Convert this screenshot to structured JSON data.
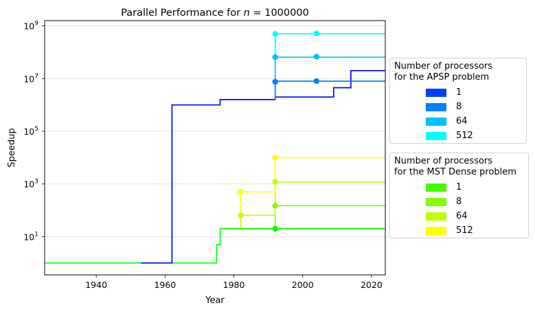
{
  "chart_data": {
    "type": "line",
    "title_prefix": "Parallel Performance for ",
    "title_var": "n",
    "title_suffix": " = 1000000",
    "xlabel": "Year",
    "ylabel": "Speedup",
    "xlim": [
      1925,
      2024
    ],
    "ylim_log10": [
      -0.45,
      9.2
    ],
    "y_scale": "log",
    "x_ticks": [
      1940,
      1960,
      1980,
      2000,
      2020
    ],
    "y_ticks_exp": [
      1,
      3,
      5,
      7,
      9
    ],
    "y_tick_base": "10",
    "grid": "horizontal",
    "legends": [
      {
        "title_lines": [
          "Number of processors",
          "for the APSP problem"
        ],
        "entries": [
          {
            "label": "1",
            "color": "#0040ff"
          },
          {
            "label": "8",
            "color": "#0080ff"
          },
          {
            "label": "64",
            "color": "#00bfff"
          },
          {
            "label": "512",
            "color": "#00ffff"
          }
        ]
      },
      {
        "title_lines": [
          "Number of processors",
          "for the MST Dense problem"
        ],
        "entries": [
          {
            "label": "1",
            "color": "#40ff00"
          },
          {
            "label": "8",
            "color": "#80ff00"
          },
          {
            "label": "64",
            "color": "#bfff00"
          },
          {
            "label": "512",
            "color": "#ffff00"
          }
        ]
      }
    ],
    "series": [
      {
        "group": "MST Dense",
        "processors": "1",
        "color": "#00ff00",
        "marker": true,
        "points": [
          [
            1925,
            1
          ],
          [
            1975,
            1
          ],
          [
            1975,
            5
          ],
          [
            1976,
            5
          ],
          [
            1976,
            20
          ],
          [
            1992,
            20
          ],
          [
            2024,
            20
          ]
        ],
        "markers": [
          [
            1992,
            20
          ]
        ]
      },
      {
        "group": "MST Dense",
        "processors": "8",
        "color": "#80ff00",
        "marker": true,
        "points": [
          [
            1992,
            20
          ],
          [
            1992,
            150
          ],
          [
            2024,
            150
          ]
        ],
        "markers": [
          [
            1992,
            150
          ]
        ]
      },
      {
        "group": "MST Dense",
        "processors": "64",
        "color": "#bfff00",
        "marker": true,
        "points": [
          [
            1982,
            20
          ],
          [
            1982,
            65
          ],
          [
            1992,
            65
          ],
          [
            1992,
            1200
          ],
          [
            2024,
            1200
          ]
        ],
        "markers": [
          [
            1982,
            65
          ],
          [
            1992,
            1200
          ]
        ]
      },
      {
        "group": "MST Dense",
        "processors": "512",
        "color": "#ffff00",
        "marker": true,
        "points": [
          [
            1982,
            65
          ],
          [
            1982,
            500
          ],
          [
            1992,
            500
          ],
          [
            1992,
            10000
          ],
          [
            2024,
            10000
          ]
        ],
        "markers": [
          [
            1982,
            500
          ],
          [
            1992,
            10000
          ]
        ]
      },
      {
        "group": "APSP",
        "processors": "1",
        "color": "#0000ff",
        "marker": false,
        "points": [
          [
            1953,
            1
          ],
          [
            1962,
            1
          ],
          [
            1962,
            1000000
          ],
          [
            1976,
            1000000
          ],
          [
            1976,
            1600000
          ],
          [
            1992,
            1600000
          ],
          [
            1992,
            2000000
          ],
          [
            2009,
            2000000
          ],
          [
            2009,
            4500000
          ],
          [
            2014,
            4500000
          ],
          [
            2014,
            20000000
          ],
          [
            2024,
            20000000
          ]
        ],
        "markers": []
      },
      {
        "group": "APSP",
        "processors": "8",
        "color": "#0080ff",
        "marker": true,
        "points": [
          [
            1992,
            1600000
          ],
          [
            1992,
            8000000
          ],
          [
            2024,
            8000000
          ]
        ],
        "markers": [
          [
            1992,
            7500000
          ],
          [
            2004,
            8000000
          ]
        ]
      },
      {
        "group": "APSP",
        "processors": "64",
        "color": "#00bfff",
        "marker": true,
        "points": [
          [
            1992,
            8000000
          ],
          [
            1992,
            65000000
          ],
          [
            2024,
            65000000
          ]
        ],
        "markers": [
          [
            1992,
            65000000
          ],
          [
            2004,
            68000000
          ]
        ]
      },
      {
        "group": "APSP",
        "processors": "512",
        "color": "#00ffff",
        "marker": true,
        "points": [
          [
            1992,
            65000000
          ],
          [
            1992,
            500000000
          ],
          [
            2024,
            500000000
          ]
        ],
        "markers": [
          [
            1992,
            500000000
          ],
          [
            2004,
            520000000
          ]
        ]
      }
    ]
  }
}
